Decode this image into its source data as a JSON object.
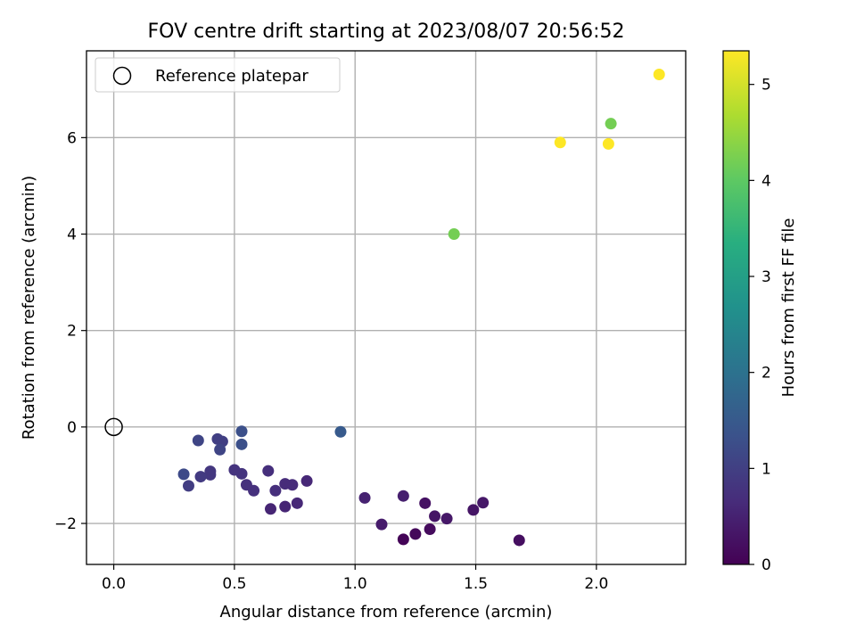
{
  "chart_data": {
    "type": "scatter",
    "title": "FOV centre drift starting at 2023/08/07 20:56:52",
    "xlabel": "Angular distance from reference (arcmin)",
    "ylabel": "Rotation from reference (arcmin)",
    "xlim": [
      -0.113,
      2.37
    ],
    "ylim": [
      -2.85,
      7.8
    ],
    "xticks": [
      0.0,
      0.5,
      1.0,
      1.5,
      2.0
    ],
    "xtick_labels": [
      "0.0",
      "0.5",
      "1.0",
      "1.5",
      "2.0"
    ],
    "yticks": [
      -2,
      0,
      2,
      4,
      6
    ],
    "ytick_labels": [
      "−2",
      "0",
      "2",
      "4",
      "6"
    ],
    "grid": true,
    "legend": {
      "placement": "top-left",
      "entries": [
        "Reference platepar"
      ]
    },
    "reference_point": {
      "label": "Reference platepar",
      "x": 0.0,
      "y": 0.0,
      "marker": "open-circle"
    },
    "colorbar": {
      "label": "Hours from first FF file",
      "colormap": "viridis",
      "range": [
        0,
        5.35
      ],
      "ticks": [
        0,
        1,
        2,
        3,
        4,
        5
      ],
      "tick_labels": [
        "0",
        "1",
        "2",
        "3",
        "4",
        "5"
      ]
    },
    "points": [
      {
        "x": 1.2,
        "y": -2.33,
        "hours": 0.05
      },
      {
        "x": 1.25,
        "y": -2.22,
        "hours": 0.1
      },
      {
        "x": 1.31,
        "y": -2.12,
        "hours": 0.15
      },
      {
        "x": 1.68,
        "y": -2.35,
        "hours": 0.2
      },
      {
        "x": 1.29,
        "y": -1.58,
        "hours": 0.25
      },
      {
        "x": 1.33,
        "y": -1.85,
        "hours": 0.3
      },
      {
        "x": 1.38,
        "y": -1.9,
        "hours": 0.35
      },
      {
        "x": 1.49,
        "y": -1.72,
        "hours": 0.3
      },
      {
        "x": 1.53,
        "y": -1.57,
        "hours": 0.35
      },
      {
        "x": 1.11,
        "y": -2.02,
        "hours": 0.4
      },
      {
        "x": 1.2,
        "y": -1.43,
        "hours": 0.45
      },
      {
        "x": 1.04,
        "y": -1.47,
        "hours": 0.5
      },
      {
        "x": 0.65,
        "y": -1.7,
        "hours": 0.55
      },
      {
        "x": 0.71,
        "y": -1.65,
        "hours": 0.55
      },
      {
        "x": 0.76,
        "y": -1.58,
        "hours": 0.6
      },
      {
        "x": 0.8,
        "y": -1.12,
        "hours": 0.6
      },
      {
        "x": 0.74,
        "y": -1.2,
        "hours": 0.65
      },
      {
        "x": 0.71,
        "y": -1.18,
        "hours": 0.65
      },
      {
        "x": 0.67,
        "y": -1.32,
        "hours": 0.7
      },
      {
        "x": 0.64,
        "y": -0.91,
        "hours": 0.7
      },
      {
        "x": 0.58,
        "y": -1.32,
        "hours": 0.75
      },
      {
        "x": 0.55,
        "y": -1.2,
        "hours": 0.75
      },
      {
        "x": 0.53,
        "y": -0.97,
        "hours": 0.8
      },
      {
        "x": 0.5,
        "y": -0.89,
        "hours": 0.8
      },
      {
        "x": 0.4,
        "y": -0.92,
        "hours": 0.85
      },
      {
        "x": 0.4,
        "y": -0.99,
        "hours": 0.85
      },
      {
        "x": 0.36,
        "y": -1.03,
        "hours": 0.9
      },
      {
        "x": 0.31,
        "y": -1.22,
        "hours": 0.95
      },
      {
        "x": 0.29,
        "y": -0.98,
        "hours": 1.2
      },
      {
        "x": 0.35,
        "y": -0.28,
        "hours": 1.1
      },
      {
        "x": 0.43,
        "y": -0.25,
        "hours": 1.0
      },
      {
        "x": 0.45,
        "y": -0.3,
        "hours": 1.0
      },
      {
        "x": 0.44,
        "y": -0.47,
        "hours": 1.1
      },
      {
        "x": 0.53,
        "y": -0.09,
        "hours": 1.3
      },
      {
        "x": 0.53,
        "y": -0.36,
        "hours": 1.3
      },
      {
        "x": 0.94,
        "y": -0.1,
        "hours": 1.5
      },
      {
        "x": 1.41,
        "y": 4.0,
        "hours": 4.2
      },
      {
        "x": 2.06,
        "y": 6.29,
        "hours": 4.2
      },
      {
        "x": 1.85,
        "y": 5.9,
        "hours": 5.35
      },
      {
        "x": 2.05,
        "y": 5.87,
        "hours": 5.35
      },
      {
        "x": 2.26,
        "y": 7.31,
        "hours": 5.35
      }
    ]
  }
}
